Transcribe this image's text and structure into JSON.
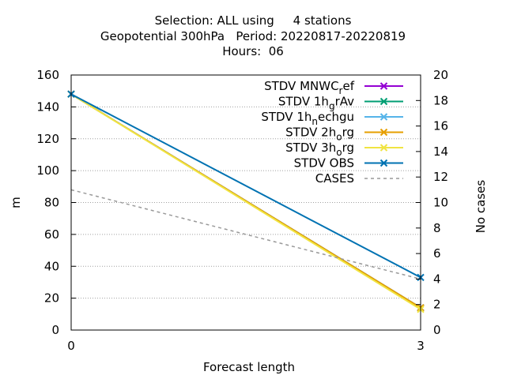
{
  "title_lines": [
    "Selection: ALL using     4 stations",
    "Geopotential 300hPa   Period: 20220817-20220819",
    "Hours:  06"
  ],
  "chart_data": {
    "type": "line",
    "title": "Selection: ALL using     4 stations\nGeopotential 300hPa   Period: 20220817-20220819\nHours:  06",
    "xlabel": "Forecast length",
    "ylabel": "m",
    "y2label": "No cases",
    "x": [
      0,
      3
    ],
    "xlim": [
      0,
      3
    ],
    "xticks": [
      "0",
      "3"
    ],
    "ylim": [
      0,
      160
    ],
    "yticks": [
      "0",
      "20",
      "40",
      "60",
      "80",
      "100",
      "120",
      "140",
      "160"
    ],
    "y2lim": [
      0,
      20
    ],
    "y2ticks": [
      "0",
      "2",
      "4",
      "6",
      "8",
      "10",
      "12",
      "14",
      "16",
      "18",
      "20"
    ],
    "grid": "horizontal dotted",
    "legend_position": "top-right",
    "series": [
      {
        "name": "STDV MNWC_ref",
        "legend_main": "STDV MNWC",
        "legend_sub": "r",
        "legend_rest": "ef",
        "color": "#9400d3",
        "axis": "y",
        "values": [
          148,
          14
        ],
        "marker": "x"
      },
      {
        "name": "STDV 1h_grAv",
        "legend_main": "STDV 1h",
        "legend_sub": "g",
        "legend_rest": "rAv",
        "color": "#009e73",
        "axis": "y",
        "values": [
          148,
          14
        ],
        "marker": "x"
      },
      {
        "name": "STDV 1h_nechgu",
        "legend_main": "STDV 1h",
        "legend_sub": "n",
        "legend_rest": "echgu",
        "color": "#56b4e9",
        "axis": "y",
        "values": [
          148,
          14
        ],
        "marker": "x"
      },
      {
        "name": "STDV 2h_org",
        "legend_main": "STDV 2h",
        "legend_sub": "o",
        "legend_rest": "rg",
        "color": "#e69f00",
        "axis": "y",
        "values": [
          148,
          14
        ],
        "marker": "x"
      },
      {
        "name": "STDV 3h_org",
        "legend_main": "STDV 3h",
        "legend_sub": "o",
        "legend_rest": "rg",
        "color": "#f0e442",
        "axis": "y",
        "values": [
          148,
          13
        ],
        "marker": "x"
      },
      {
        "name": "STDV OBS",
        "legend_main": "STDV OBS",
        "legend_sub": "",
        "legend_rest": "",
        "color": "#0072b2",
        "axis": "y",
        "values": [
          148,
          33
        ],
        "marker": "x"
      },
      {
        "name": "CASES",
        "legend_main": "CASES",
        "legend_sub": "",
        "legend_rest": "",
        "color": "#999999",
        "axis": "y2",
        "values": [
          11,
          4
        ],
        "marker": "none",
        "dash": true
      }
    ]
  }
}
